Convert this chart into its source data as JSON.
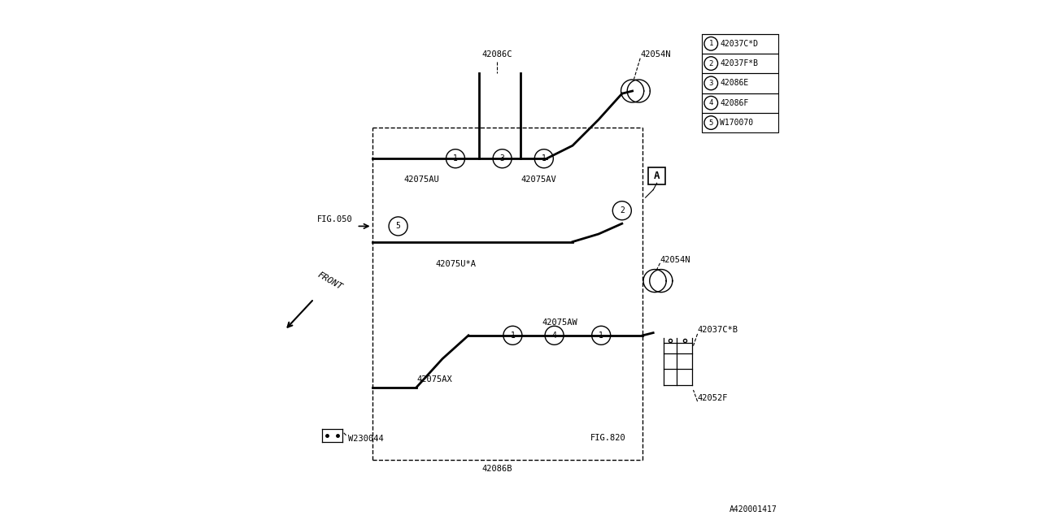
{
  "bg_color": "#ffffff",
  "line_color": "#000000",
  "legend_items": [
    {
      "num": "1",
      "code": "42037C*D"
    },
    {
      "num": "2",
      "code": "42037F*B"
    },
    {
      "num": "3",
      "code": "42086E"
    },
    {
      "num": "4",
      "code": "42086F"
    },
    {
      "num": "5",
      "code": "W170070"
    }
  ],
  "ref_code": "A420001417",
  "front_label": "FRONT"
}
